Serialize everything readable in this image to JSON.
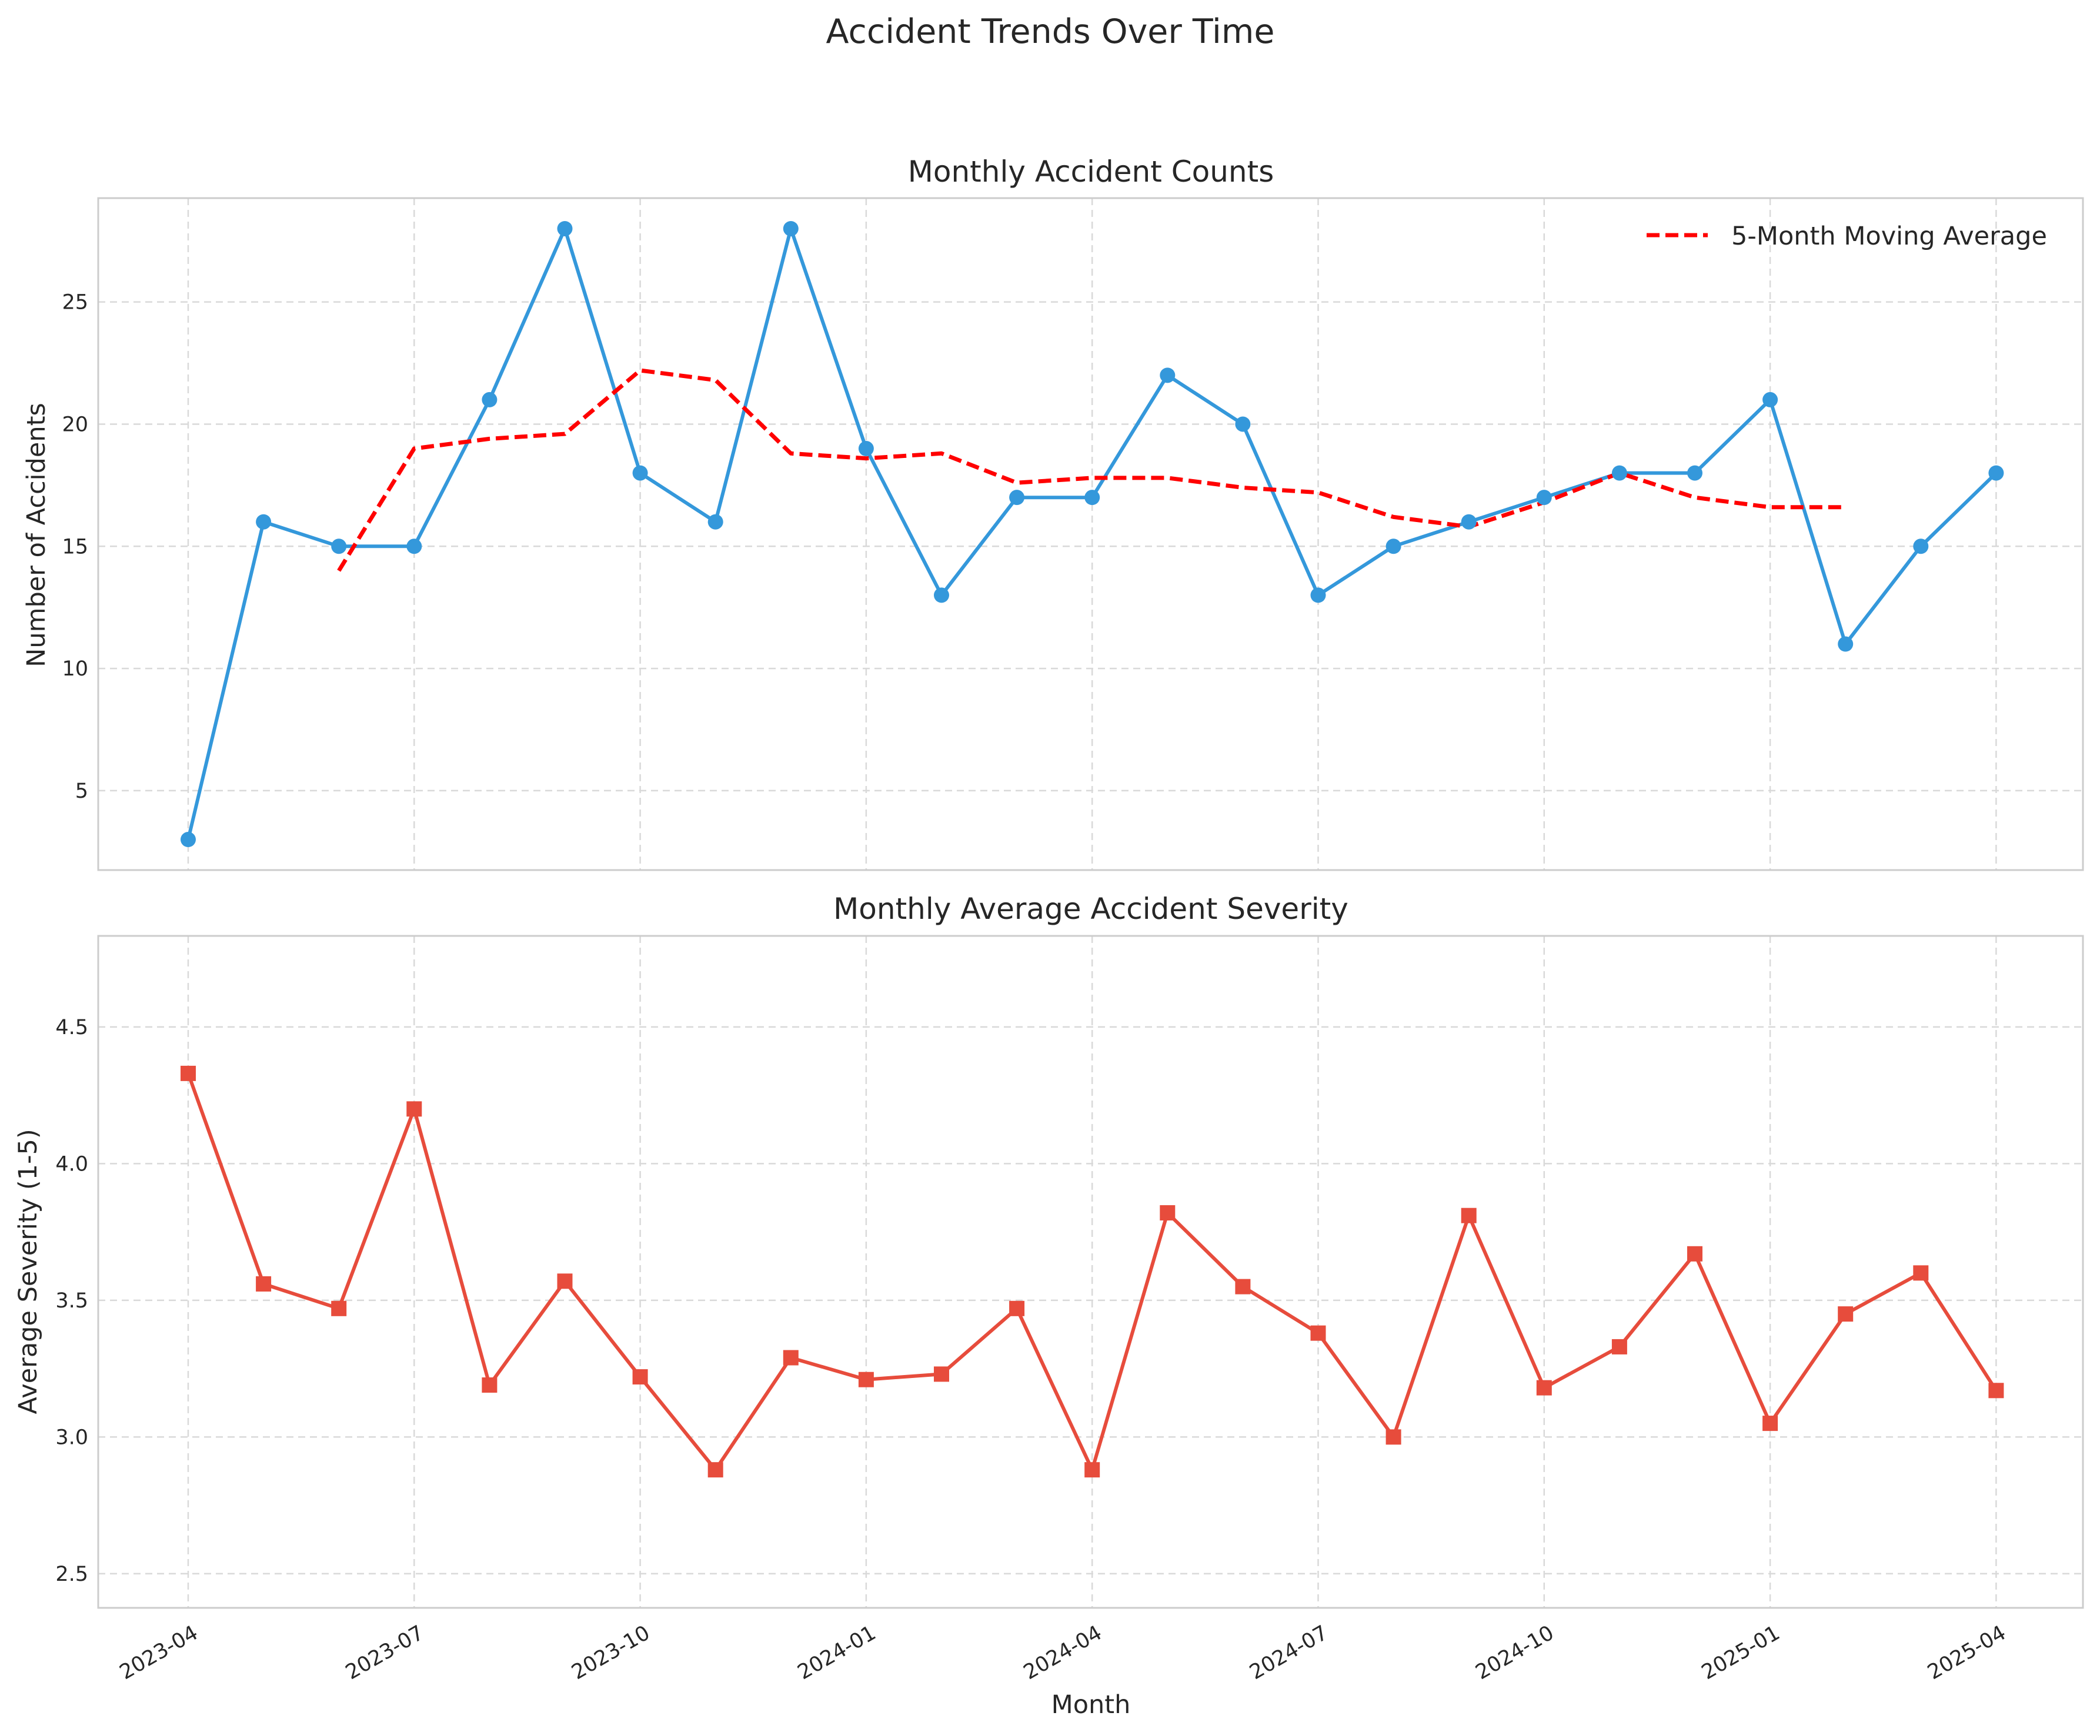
{
  "suptitle": "Accident Trends Over Time",
  "x_tick_labels": [
    "2023-04",
    "2023-07",
    "2023-10",
    "2024-01",
    "2024-04",
    "2024-07",
    "2024-10",
    "2025-01",
    "2025-04"
  ],
  "x_axis_label": "Month",
  "colors": {
    "counts_line": "#3498db",
    "moving_avg_line": "#ff0000",
    "severity_line": "#e74c3c",
    "grid": "#d9d9d9",
    "frame": "#cccccc"
  },
  "chart_data": [
    {
      "type": "line",
      "title": "Monthly Accident Counts",
      "xlabel": "",
      "ylabel": "Number of Accidents",
      "ylim": [
        1.75,
        29.25
      ],
      "yticks": [
        5,
        10,
        15,
        20,
        25
      ],
      "grid": true,
      "legend": {
        "placement": "top-right",
        "entries": [
          "5-Month Moving Average"
        ]
      },
      "x": [
        "2023-04",
        "2023-05",
        "2023-06",
        "2023-07",
        "2023-08",
        "2023-09",
        "2023-10",
        "2023-11",
        "2023-12",
        "2024-01",
        "2024-02",
        "2024-03",
        "2024-04",
        "2024-05",
        "2024-06",
        "2024-07",
        "2024-08",
        "2024-09",
        "2024-10",
        "2024-11",
        "2024-12",
        "2025-01",
        "2025-02",
        "2025-03",
        "2025-04"
      ],
      "series": [
        {
          "name": "",
          "marker": "circle",
          "linestyle": "solid",
          "values": [
            3,
            16,
            15,
            15,
            21,
            28,
            18,
            16,
            28,
            19,
            13,
            17,
            17,
            22,
            20,
            13,
            15,
            16,
            17,
            18,
            18,
            21,
            11,
            15,
            18
          ]
        },
        {
          "name": "5-Month Moving Average",
          "marker": "none",
          "linestyle": "dashed",
          "values": [
            null,
            null,
            14.0,
            19.0,
            19.4,
            19.6,
            22.2,
            21.8,
            18.8,
            18.6,
            18.8,
            17.6,
            17.8,
            17.8,
            17.4,
            17.2,
            16.2,
            15.8,
            16.8,
            18.0,
            17.0,
            16.6,
            16.6,
            null,
            null
          ]
        }
      ]
    },
    {
      "type": "line",
      "title": "Monthly Average Accident Severity",
      "xlabel": "Month",
      "ylabel": "Average Severity (1-5)",
      "ylim": [
        2.375,
        4.833
      ],
      "yticks": [
        2.5,
        3.0,
        3.5,
        4.0,
        4.5
      ],
      "grid": true,
      "x": [
        "2023-04",
        "2023-05",
        "2023-06",
        "2023-07",
        "2023-08",
        "2023-09",
        "2023-10",
        "2023-11",
        "2023-12",
        "2024-01",
        "2024-02",
        "2024-03",
        "2024-04",
        "2024-05",
        "2024-06",
        "2024-07",
        "2024-08",
        "2024-09",
        "2024-10",
        "2024-11",
        "2024-12",
        "2025-01",
        "2025-02",
        "2025-03",
        "2025-04"
      ],
      "series": [
        {
          "name": "",
          "marker": "square",
          "linestyle": "solid",
          "values": [
            4.33,
            3.56,
            3.47,
            4.2,
            3.19,
            3.57,
            3.22,
            2.88,
            3.29,
            3.21,
            3.23,
            3.47,
            2.88,
            3.82,
            3.55,
            3.38,
            3.0,
            3.81,
            3.18,
            3.33,
            3.67,
            3.05,
            3.45,
            3.6,
            3.17
          ]
        }
      ]
    }
  ]
}
